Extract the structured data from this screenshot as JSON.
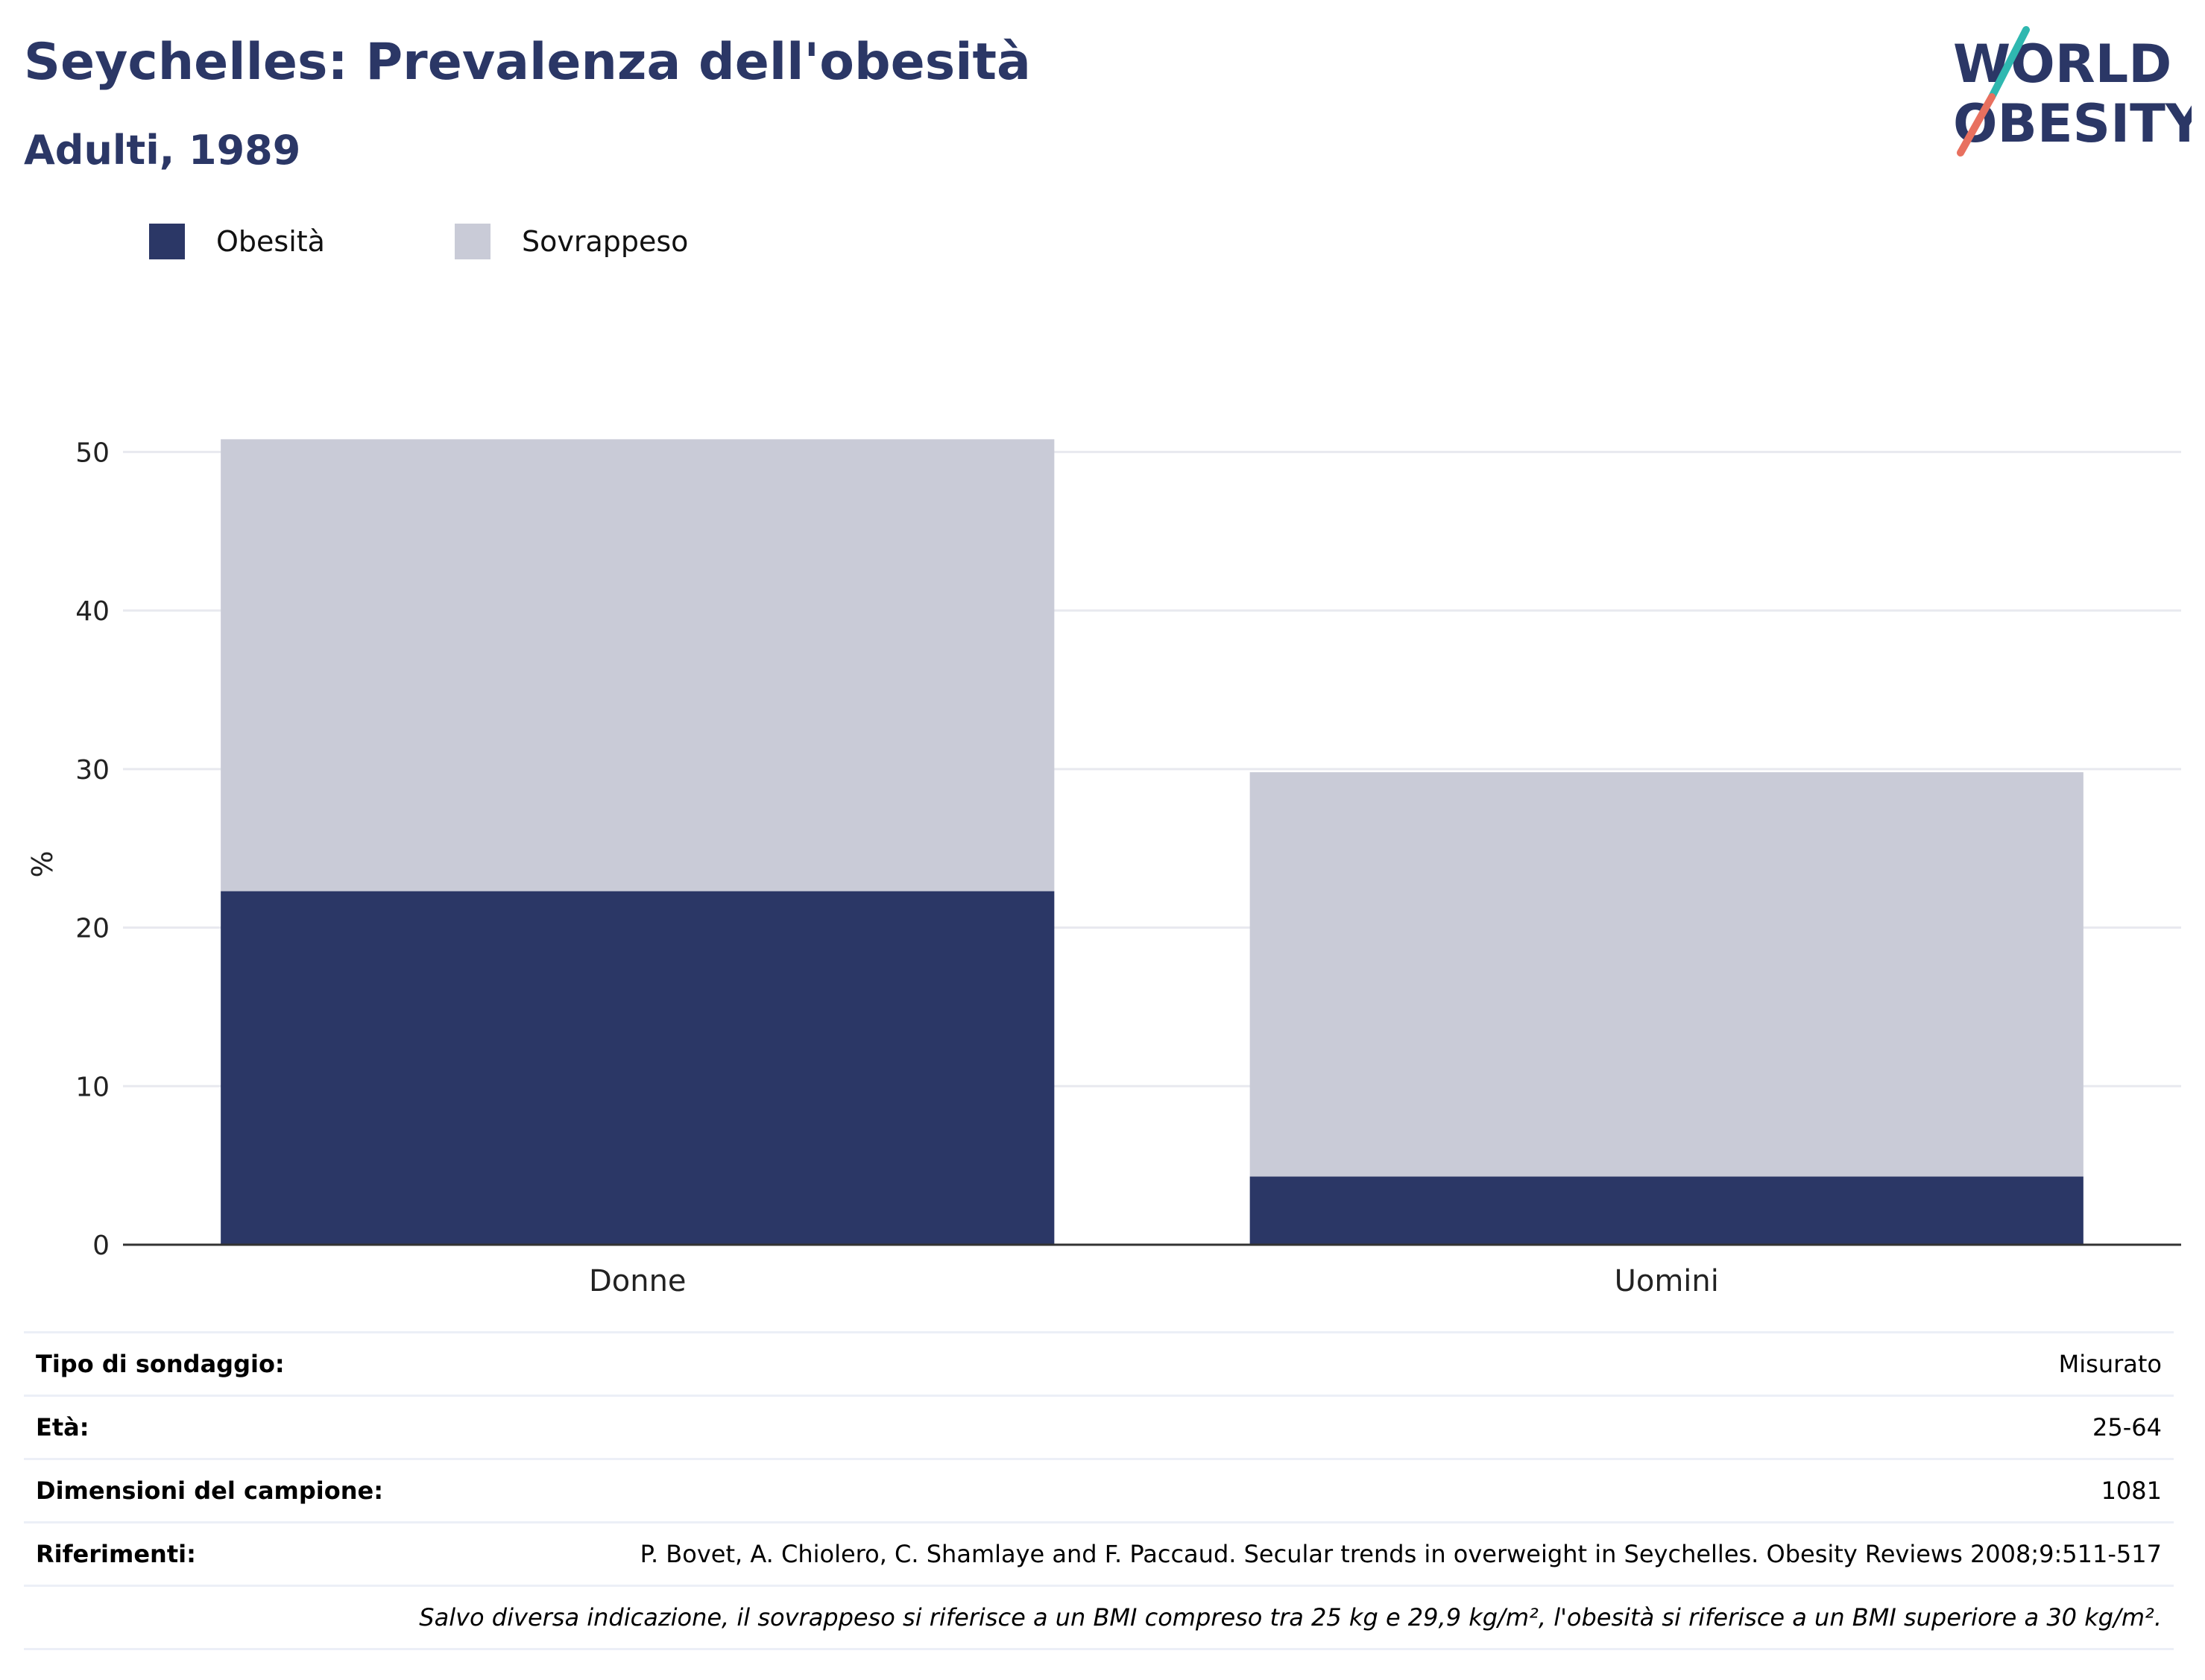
{
  "header": {
    "title": "Seychelles: Prevalenza dell'obesità",
    "subtitle": "Adulti, 1989"
  },
  "logo": {
    "line1": "WORLD",
    "line2": "OBESITY",
    "colors": {
      "text": "#2b3766",
      "slash_top": "#2fb8b0",
      "slash_bottom": "#e8705f"
    }
  },
  "legend": [
    {
      "label": "Obesità",
      "color": "#2b3766"
    },
    {
      "label": "Sovrappeso",
      "color": "#c9cbd7"
    }
  ],
  "chart_data": {
    "type": "bar",
    "stacked": true,
    "categories": [
      "Donne",
      "Uomini"
    ],
    "series": [
      {
        "name": "Obesità",
        "values": [
          22.3,
          4.3
        ],
        "color": "#2b3766"
      },
      {
        "name": "Sovrappeso",
        "values": [
          28.5,
          25.5
        ],
        "color": "#c9cbd7"
      }
    ],
    "ylabel": "%",
    "ylim": [
      0,
      55
    ],
    "yticks": [
      0,
      10,
      20,
      30,
      40,
      50
    ],
    "grid": true,
    "legend_position": "top-left"
  },
  "info": {
    "rows": [
      {
        "label": "Tipo di sondaggio:",
        "value": "Misurato"
      },
      {
        "label": "Età:",
        "value": "25-64"
      },
      {
        "label": "Dimensioni del campione:",
        "value": "1081"
      },
      {
        "label": "Riferimenti:",
        "value": "P. Bovet, A. Chiolero, C. Shamlaye and F. Paccaud. Secular trends in overweight in Seychelles. Obesity Reviews 2008;9:511-517"
      }
    ],
    "note": "Salvo diversa indicazione, il sovrappeso si riferisce a un BMI compreso tra 25 kg e 29,9 kg/m², l'obesità si riferisce a un BMI superiore a 30 kg/m²."
  }
}
